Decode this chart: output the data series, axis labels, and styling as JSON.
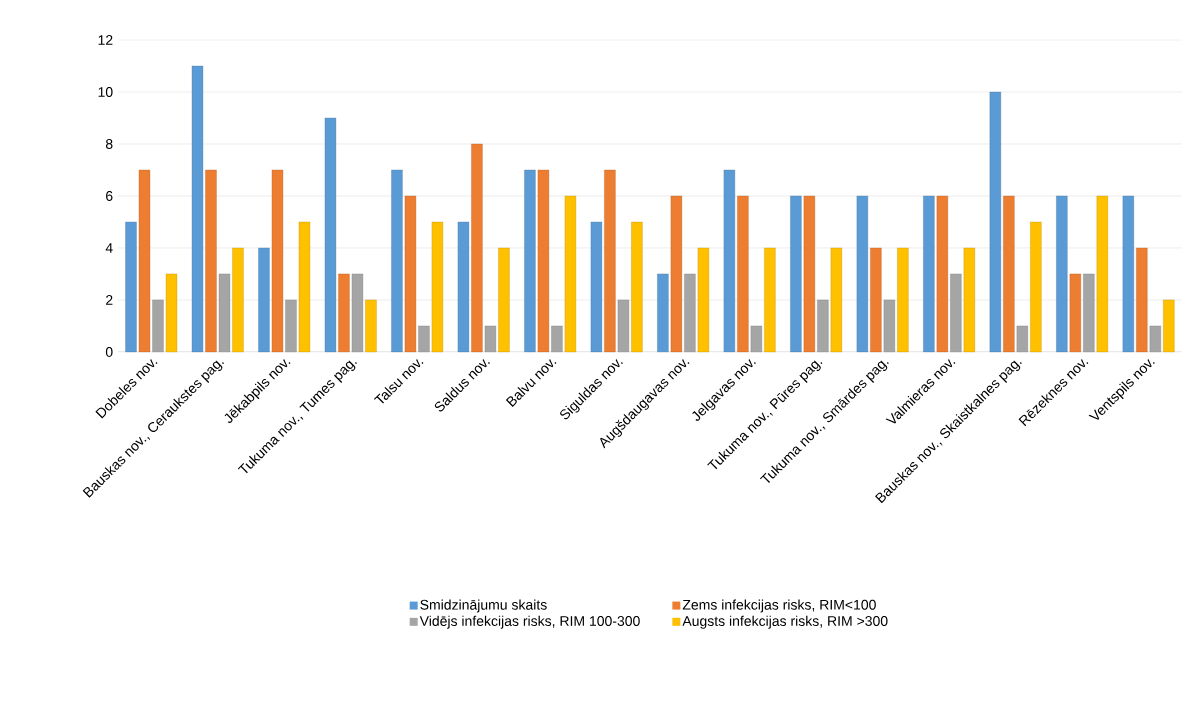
{
  "chart_data": {
    "type": "bar",
    "categories": [
      "Dobeles nov.",
      "Bauskas nov., Ceraukstes pag.",
      "Jēkabpils nov.",
      "Tukuma nov., Tumes pag.",
      "Talsu nov.",
      "Saldus nov.",
      "Balvu nov.",
      "Siguldas nov.",
      "Augšdaugavas nov.",
      "Jelgavas nov.",
      "Tukuma nov., Pūres pag.",
      "Tukuma nov., Smārdes pag.",
      "Valmieras nov.",
      "Bauskas nov., Skaistkalnes pag.",
      "Rēzeknes nov.",
      "Ventspils nov."
    ],
    "series": [
      {
        "name": "Smidzinājumu skaits",
        "color": "#5b9bd5",
        "values": [
          5,
          11,
          4,
          9,
          7,
          5,
          7,
          5,
          3,
          7,
          6,
          6,
          6,
          10,
          6,
          6
        ]
      },
      {
        "name": "Zems infekcijas risks, RIM<100",
        "color": "#ed7d31",
        "values": [
          7,
          7,
          7,
          3,
          6,
          8,
          7,
          7,
          6,
          6,
          6,
          4,
          6,
          6,
          3,
          4
        ]
      },
      {
        "name": "Vidējs infekcijas risks, RIM 100-300",
        "color": "#a5a5a5",
        "values": [
          2,
          3,
          2,
          3,
          1,
          1,
          1,
          2,
          3,
          1,
          2,
          2,
          3,
          1,
          3,
          1
        ]
      },
      {
        "name": "Augsts infekcijas risks, RIM >300",
        "color": "#ffc000",
        "values": [
          3,
          4,
          5,
          2,
          5,
          4,
          6,
          5,
          4,
          4,
          4,
          4,
          4,
          5,
          6,
          2
        ]
      }
    ],
    "ylim": [
      0,
      12
    ],
    "yticks": [
      0,
      2,
      4,
      6,
      8,
      10,
      12
    ],
    "grid": "y",
    "legend": "bottom"
  }
}
